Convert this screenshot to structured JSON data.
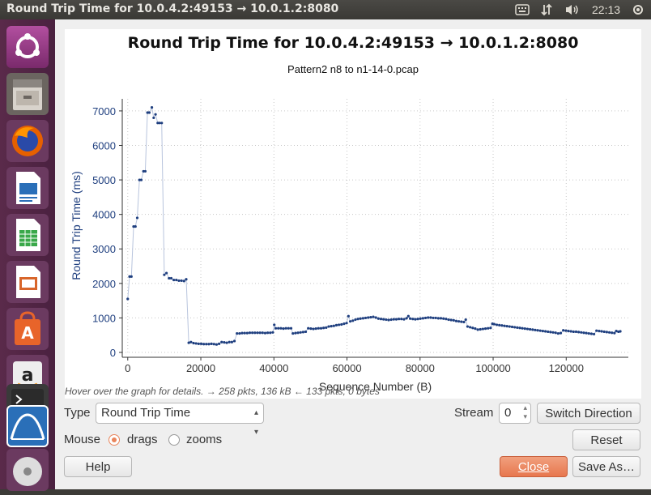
{
  "window_title": "Round Trip Time for 10.0.4.2:49153 → 10.0.1.2:8080",
  "tray": {
    "keyboard_icon": "keyboard-icon",
    "network_icon": "network-arrows-icon",
    "volume_icon": "volume-icon",
    "clock": "22:13",
    "power_icon": "gear-power-icon"
  },
  "launcher": {
    "items": [
      "ubuntu-dash",
      "files",
      "firefox",
      "writer",
      "calc",
      "impress",
      "software-center",
      "amazon",
      "terminal",
      "wireshark",
      "dvd"
    ]
  },
  "chart_data": {
    "type": "scatter",
    "title": "Round Trip Time for 10.0.4.2:49153 → 10.0.1.2:8080",
    "subtitle": "Pattern2 n8 to n1-14-0.pcap",
    "xlabel": "Sequence Number (B)",
    "ylabel": "Round Trip Time (ms)",
    "xlim": [
      -1500,
      137000
    ],
    "ylim": [
      0,
      7350
    ],
    "xticks": [
      0,
      20000,
      40000,
      60000,
      80000,
      100000,
      120000
    ],
    "xtick_labels": [
      "0",
      "20000",
      "40000",
      "60000",
      "80000",
      "100000",
      "120000"
    ],
    "yticks": [
      0,
      1000,
      2000,
      3000,
      4000,
      5000,
      6000,
      7000
    ],
    "ytick_labels": [
      "0",
      "1000",
      "2000",
      "3000",
      "4000",
      "5000",
      "6000",
      "7000"
    ],
    "grid": true,
    "series": [
      {
        "color": "#1f3f7f",
        "points": [
          [
            0,
            1550
          ],
          [
            500,
            2200
          ],
          [
            1000,
            2200
          ],
          [
            1600,
            3650
          ],
          [
            2100,
            3650
          ],
          [
            2600,
            3900
          ],
          [
            3200,
            5000
          ],
          [
            3700,
            5000
          ],
          [
            4300,
            5250
          ],
          [
            4800,
            5250
          ],
          [
            5400,
            6950
          ],
          [
            5900,
            6950
          ],
          [
            6600,
            7100
          ],
          [
            7100,
            6800
          ],
          [
            7600,
            6900
          ],
          [
            8200,
            6650
          ],
          [
            8700,
            6650
          ],
          [
            9300,
            6650
          ],
          [
            10000,
            2250
          ],
          [
            10600,
            2300
          ],
          [
            11300,
            2150
          ],
          [
            11900,
            2150
          ],
          [
            12600,
            2100
          ],
          [
            13300,
            2100
          ],
          [
            14000,
            2080
          ],
          [
            14700,
            2080
          ],
          [
            15400,
            2070
          ],
          [
            16000,
            2120
          ],
          [
            16700,
            280
          ],
          [
            17300,
            300
          ],
          [
            18000,
            270
          ],
          [
            18700,
            260
          ],
          [
            19400,
            250
          ],
          [
            20100,
            250
          ],
          [
            20800,
            240
          ],
          [
            21500,
            240
          ],
          [
            22200,
            240
          ],
          [
            22900,
            250
          ],
          [
            23600,
            240
          ],
          [
            24300,
            230
          ],
          [
            25000,
            250
          ],
          [
            25700,
            300
          ],
          [
            26400,
            290
          ],
          [
            27100,
            280
          ],
          [
            27800,
            300
          ],
          [
            28500,
            300
          ],
          [
            29200,
            330
          ],
          [
            29900,
            550
          ],
          [
            30600,
            550
          ],
          [
            31300,
            560
          ],
          [
            32000,
            560
          ],
          [
            32700,
            560
          ],
          [
            33400,
            570
          ],
          [
            34100,
            570
          ],
          [
            34800,
            570
          ],
          [
            35500,
            570
          ],
          [
            36200,
            570
          ],
          [
            36900,
            570
          ],
          [
            37600,
            560
          ],
          [
            38300,
            570
          ],
          [
            39000,
            570
          ],
          [
            39700,
            580
          ],
          [
            40100,
            800
          ],
          [
            40500,
            700
          ],
          [
            41200,
            700
          ],
          [
            41900,
            700
          ],
          [
            42600,
            690
          ],
          [
            43300,
            700
          ],
          [
            44000,
            700
          ],
          [
            44700,
            700
          ],
          [
            45200,
            550
          ],
          [
            45900,
            560
          ],
          [
            46600,
            570
          ],
          [
            47300,
            580
          ],
          [
            48000,
            590
          ],
          [
            48700,
            600
          ],
          [
            49400,
            700
          ],
          [
            50100,
            690
          ],
          [
            50800,
            680
          ],
          [
            51500,
            690
          ],
          [
            52200,
            700
          ],
          [
            52900,
            700
          ],
          [
            53600,
            710
          ],
          [
            54300,
            720
          ],
          [
            55000,
            750
          ],
          [
            55700,
            760
          ],
          [
            56400,
            770
          ],
          [
            57100,
            790
          ],
          [
            57800,
            800
          ],
          [
            58500,
            810
          ],
          [
            59200,
            830
          ],
          [
            59900,
            850
          ],
          [
            60400,
            1050
          ],
          [
            60900,
            900
          ],
          [
            61600,
            920
          ],
          [
            62300,
            950
          ],
          [
            63000,
            970
          ],
          [
            63700,
            980
          ],
          [
            64400,
            990
          ],
          [
            65100,
            1000
          ],
          [
            65800,
            1010
          ],
          [
            66500,
            1020
          ],
          [
            67200,
            1030
          ],
          [
            67900,
            1010
          ],
          [
            68600,
            980
          ],
          [
            69300,
            970
          ],
          [
            70000,
            960
          ],
          [
            70700,
            950
          ],
          [
            71400,
            940
          ],
          [
            72100,
            950
          ],
          [
            72800,
            960
          ],
          [
            73500,
            960
          ],
          [
            74200,
            970
          ],
          [
            74900,
            970
          ],
          [
            75600,
            960
          ],
          [
            76300,
            990
          ],
          [
            76800,
            1050
          ],
          [
            77300,
            980
          ],
          [
            78000,
            970
          ],
          [
            78700,
            960
          ],
          [
            79400,
            970
          ],
          [
            80100,
            980
          ],
          [
            80800,
            990
          ],
          [
            81500,
            1000
          ],
          [
            82200,
            1010
          ],
          [
            82900,
            1010
          ],
          [
            83600,
            1000
          ],
          [
            84300,
            1000
          ],
          [
            85000,
            990
          ],
          [
            85700,
            990
          ],
          [
            86400,
            980
          ],
          [
            87100,
            970
          ],
          [
            87800,
            950
          ],
          [
            88500,
            940
          ],
          [
            89200,
            930
          ],
          [
            89900,
            910
          ],
          [
            90600,
            900
          ],
          [
            91300,
            890
          ],
          [
            92000,
            880
          ],
          [
            92500,
            950
          ],
          [
            93000,
            750
          ],
          [
            93700,
            730
          ],
          [
            94400,
            710
          ],
          [
            95100,
            690
          ],
          [
            95800,
            660
          ],
          [
            96500,
            670
          ],
          [
            97200,
            680
          ],
          [
            97900,
            690
          ],
          [
            98600,
            700
          ],
          [
            99300,
            710
          ],
          [
            99800,
            830
          ],
          [
            100300,
            820
          ],
          [
            101000,
            800
          ],
          [
            101700,
            790
          ],
          [
            102400,
            780
          ],
          [
            103100,
            770
          ],
          [
            103800,
            760
          ],
          [
            104500,
            750
          ],
          [
            105200,
            740
          ],
          [
            105900,
            730
          ],
          [
            106600,
            720
          ],
          [
            107300,
            710
          ],
          [
            108000,
            700
          ],
          [
            108700,
            690
          ],
          [
            109400,
            680
          ],
          [
            110100,
            670
          ],
          [
            110800,
            660
          ],
          [
            111500,
            650
          ],
          [
            112200,
            640
          ],
          [
            112900,
            630
          ],
          [
            113600,
            620
          ],
          [
            114300,
            610
          ],
          [
            115000,
            600
          ],
          [
            115700,
            590
          ],
          [
            116400,
            580
          ],
          [
            117100,
            570
          ],
          [
            117800,
            550
          ],
          [
            118500,
            560
          ],
          [
            119200,
            640
          ],
          [
            119900,
            630
          ],
          [
            120600,
            620
          ],
          [
            121300,
            610
          ],
          [
            122000,
            600
          ],
          [
            122700,
            600
          ],
          [
            123400,
            590
          ],
          [
            124100,
            580
          ],
          [
            124800,
            570
          ],
          [
            125500,
            560
          ],
          [
            126200,
            550
          ],
          [
            126900,
            540
          ],
          [
            127600,
            530
          ],
          [
            128300,
            630
          ],
          [
            129000,
            620
          ],
          [
            129700,
            610
          ],
          [
            130400,
            600
          ],
          [
            131100,
            590
          ],
          [
            131800,
            580
          ],
          [
            132500,
            570
          ],
          [
            133200,
            560
          ],
          [
            133700,
            620
          ],
          [
            134300,
            600
          ],
          [
            134800,
            610
          ]
        ]
      }
    ]
  },
  "info_text": "Hover over the graph for details. → 258 pkts, 136 kB ← 133 pkts, 0 bytes",
  "controls": {
    "type_label": "Type",
    "type_value": "Round Trip Time",
    "stream_label": "Stream",
    "stream_value": "0",
    "switch_direction": "Switch Direction",
    "mouse_label": "Mouse",
    "drags_label": "drags",
    "zooms_label": "zooms",
    "reset": "Reset",
    "help": "Help",
    "close": "Close",
    "save_as": "Save As…"
  },
  "colors": {
    "accent": "#e9855c",
    "series": "#1f3f7f",
    "launcher_bg": "#4a2140"
  }
}
